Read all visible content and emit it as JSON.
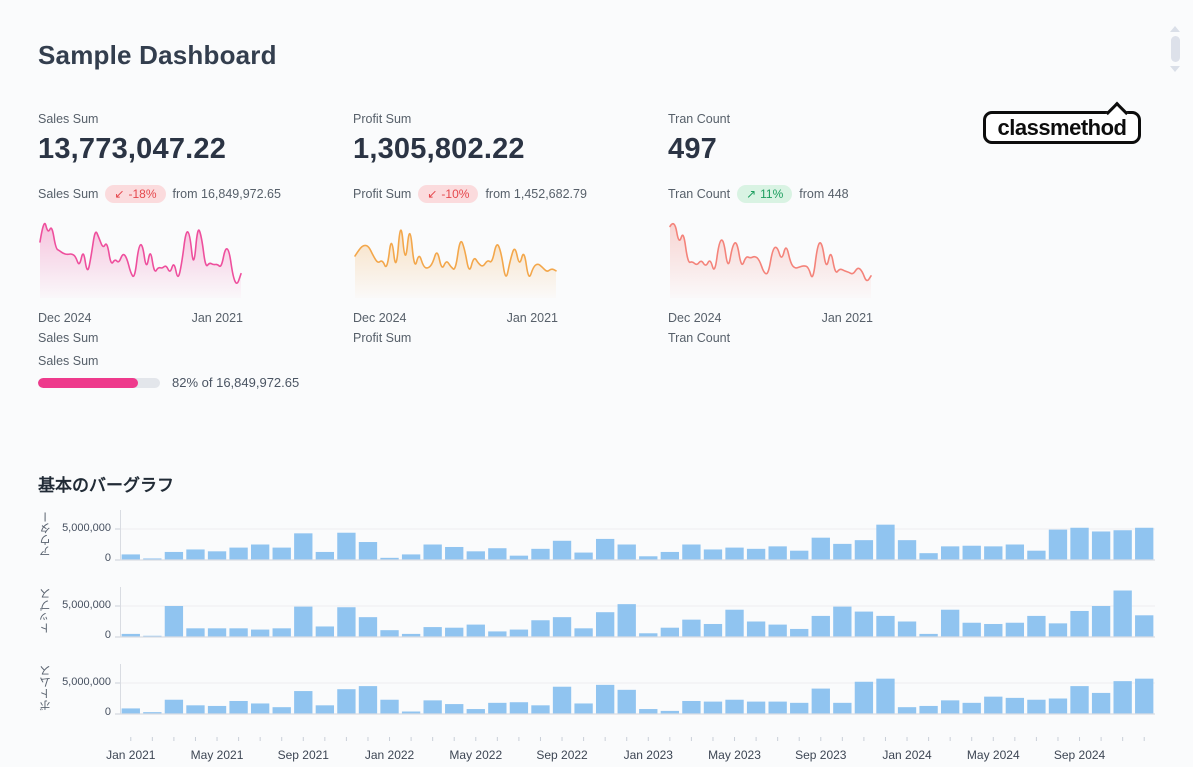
{
  "page": {
    "title": "Sample Dashboard"
  },
  "logo": {
    "text": "classmethod"
  },
  "kpis": [
    {
      "label": "Sales Sum",
      "value": "13,773,047.22",
      "compare": {
        "label": "Sales Sum",
        "arrow": "↙",
        "pct": "-18%",
        "direction": "down",
        "from": "from 16,849,972.65"
      },
      "spark_left": "Dec 2024",
      "spark_right": "Jan 2021",
      "series": "Sales Sum"
    },
    {
      "label": "Profit Sum",
      "value": "1,305,802.22",
      "compare": {
        "label": "Profit Sum",
        "arrow": "↙",
        "pct": "-10%",
        "direction": "down",
        "from": "from 1,452,682.79"
      },
      "spark_left": "Dec 2024",
      "spark_right": "Jan 2021",
      "series": "Profit Sum"
    },
    {
      "label": "Tran Count",
      "value": "497",
      "compare": {
        "label": "Tran Count",
        "arrow": "↗",
        "pct": "11%",
        "direction": "up",
        "from": "from 448"
      },
      "spark_left": "Dec 2024",
      "spark_right": "Jan 2021",
      "series": "Tran Count"
    }
  ],
  "progress": {
    "label": "Sales Sum",
    "percent": 82,
    "text": "82% of 16,849,972.65"
  },
  "colors": {
    "accent_pink": "#ee3a8c",
    "spark_sales": "#ee4f9d",
    "spark_profit": "#f3a74b",
    "spark_tran": "#f4837a",
    "bar_blue": "#90c4f0",
    "badge_down_bg": "#fbdbdd",
    "badge_down_text": "#e5484d",
    "badge_up_bg": "#d9f3e3",
    "badge_up_text": "#1d9e5f"
  },
  "chart_data": [
    {
      "type": "area",
      "name": "sales-sparkline",
      "title": "Sales Sum",
      "x_start_label": "Dec 2024",
      "x_end_label": "Jan 2021",
      "color": "#ee4f9d",
      "ylim": [
        0,
        10
      ],
      "values": [
        6.5,
        9.8,
        7.6,
        8.8,
        5.6,
        5.3,
        4.9,
        4.8,
        4.9,
        4.6,
        3.1,
        5.6,
        2.0,
        4.6,
        8.3,
        7.0,
        5.6,
        6.6,
        3.3,
        4.2,
        3.6,
        5.0,
        4.4,
        2.3,
        1.5,
        5.9,
        6.3,
        2.6,
        5.7,
        2.2,
        3.1,
        2.9,
        3.4,
        2.2,
        3.9,
        1.2,
        3.7,
        8.0,
        7.7,
        2.7,
        8.7,
        7.2,
        3.0,
        3.7,
        3.4,
        3.5,
        3.0,
        5.7,
        5.4,
        1.7,
        0.6,
        2.2
      ]
    },
    {
      "type": "area",
      "name": "profit-sparkline",
      "title": "Profit Sum",
      "x_start_label": "Dec 2024",
      "x_end_label": "Jan 2021",
      "color": "#f3a74b",
      "ylim": [
        0,
        10
      ],
      "values": [
        4.6,
        5.6,
        6.1,
        5.9,
        4.6,
        3.6,
        4.1,
        2.6,
        7.6,
        2.1,
        9.9,
        3.1,
        9.2,
        2.6,
        5.1,
        3.1,
        2.9,
        3.6,
        5.6,
        2.6,
        4.1,
        3.1,
        2.6,
        7.1,
        5.6,
        2.1,
        4.6,
        3.6,
        3.1,
        4.1,
        3.6,
        6.6,
        5.1,
        1.0,
        4.1,
        6.1,
        3.1,
        5.6,
        1.2,
        3.1,
        3.6,
        3.1,
        2.4,
        2.9,
        2.6
      ]
    },
    {
      "type": "area",
      "name": "tran-sparkline",
      "title": "Tran Count",
      "x_start_label": "Dec 2024",
      "x_end_label": "Jan 2021",
      "color": "#f4837a",
      "ylim": [
        0,
        10
      ],
      "values": [
        8.6,
        9.6,
        6.1,
        8.1,
        3.6,
        3.9,
        3.3,
        4.1,
        3.1,
        4.3,
        2.1,
        6.6,
        6.9,
        2.6,
        6.1,
        6.6,
        2.9,
        4.6,
        4.3,
        4.6,
        4.1,
        2.3,
        2.1,
        5.6,
        5.9,
        3.9,
        6.3,
        3.6,
        2.9,
        3.1,
        3.3,
        3.1,
        1.1,
        6.1,
        6.6,
        2.6,
        5.6,
        2.1,
        2.9,
        2.6,
        2.4,
        2.1,
        3.1,
        2.6,
        1.0,
        1.9
      ]
    },
    {
      "type": "bar",
      "name": "basic-bar-graph",
      "title": "基本のバーグラフ",
      "bar_color": "#90c4f0",
      "grid": true,
      "gridline_value": 5000000,
      "ylim": [
        0,
        8500000
      ],
      "y_ticks": [
        "5,000,000",
        "0"
      ],
      "x_tick_labels": [
        "Jan 2021",
        "May 2021",
        "Sep 2021",
        "Jan 2022",
        "May 2022",
        "Sep 2022",
        "Jan 2023",
        "May 2023",
        "Sep 2023",
        "Jan 2024",
        "May 2024",
        "Sep 2024"
      ],
      "categories": [
        "Jan 2021",
        "Feb 2021",
        "Mar 2021",
        "Apr 2021",
        "May 2021",
        "Jun 2021",
        "Jul 2021",
        "Aug 2021",
        "Sep 2021",
        "Oct 2021",
        "Nov 2021",
        "Dec 2021",
        "Jan 2022",
        "Feb 2022",
        "Mar 2022",
        "Apr 2022",
        "May 2022",
        "Jun 2022",
        "Jul 2022",
        "Aug 2022",
        "Sep 2022",
        "Oct 2022",
        "Nov 2022",
        "Dec 2022",
        "Jan 2023",
        "Feb 2023",
        "Mar 2023",
        "Apr 2023",
        "May 2023",
        "Jun 2023",
        "Jul 2023",
        "Aug 2023",
        "Sep 2023",
        "Oct 2023",
        "Nov 2023",
        "Dec 2023",
        "Jan 2024",
        "Feb 2024",
        "Mar 2024",
        "Apr 2024",
        "May 2024",
        "Jun 2024",
        "Jul 2024",
        "Aug 2024",
        "Sep 2024",
        "Oct 2024",
        "Nov 2024",
        "Dec 2024"
      ],
      "series": [
        {
          "name": "アウター",
          "values": [
            900000,
            250000,
            1300000,
            1700000,
            1400000,
            2000000,
            2500000,
            2000000,
            4300000,
            1300000,
            4400000,
            2900000,
            350000,
            900000,
            2500000,
            2100000,
            1400000,
            1900000,
            700000,
            1800000,
            3100000,
            1200000,
            3400000,
            2500000,
            600000,
            1300000,
            2500000,
            1700000,
            2000000,
            1800000,
            2200000,
            1500000,
            3600000,
            2600000,
            3200000,
            5700000,
            3200000,
            1100000,
            2200000,
            2300000,
            2200000,
            2500000,
            1500000,
            4900000,
            5200000,
            4600000,
            4800000,
            5200000
          ]
        },
        {
          "name": "トップス",
          "values": [
            500000,
            200000,
            5000000,
            1400000,
            1400000,
            1400000,
            1200000,
            1400000,
            4900000,
            1700000,
            4800000,
            3200000,
            1100000,
            500000,
            1600000,
            1500000,
            2000000,
            900000,
            1200000,
            2700000,
            3200000,
            1400000,
            4000000,
            5300000,
            600000,
            1500000,
            2800000,
            2100000,
            4400000,
            2500000,
            2000000,
            1300000,
            3400000,
            4900000,
            4100000,
            3400000,
            2500000,
            500000,
            4400000,
            2300000,
            2100000,
            2300000,
            3400000,
            2200000,
            4200000,
            5000000,
            7500000,
            3500000
          ]
        },
        {
          "name": "ボトムス",
          "values": [
            900000,
            300000,
            2300000,
            1400000,
            1300000,
            2100000,
            1700000,
            1100000,
            3700000,
            1400000,
            4000000,
            4500000,
            2300000,
            400000,
            2200000,
            1600000,
            800000,
            1800000,
            1900000,
            1400000,
            4400000,
            1700000,
            4700000,
            3900000,
            800000,
            500000,
            2100000,
            2000000,
            2300000,
            2000000,
            2000000,
            1800000,
            4100000,
            1800000,
            5200000,
            5700000,
            1100000,
            1300000,
            2200000,
            1800000,
            2800000,
            2600000,
            2300000,
            2500000,
            4500000,
            3400000,
            5300000,
            5700000
          ]
        }
      ]
    }
  ]
}
